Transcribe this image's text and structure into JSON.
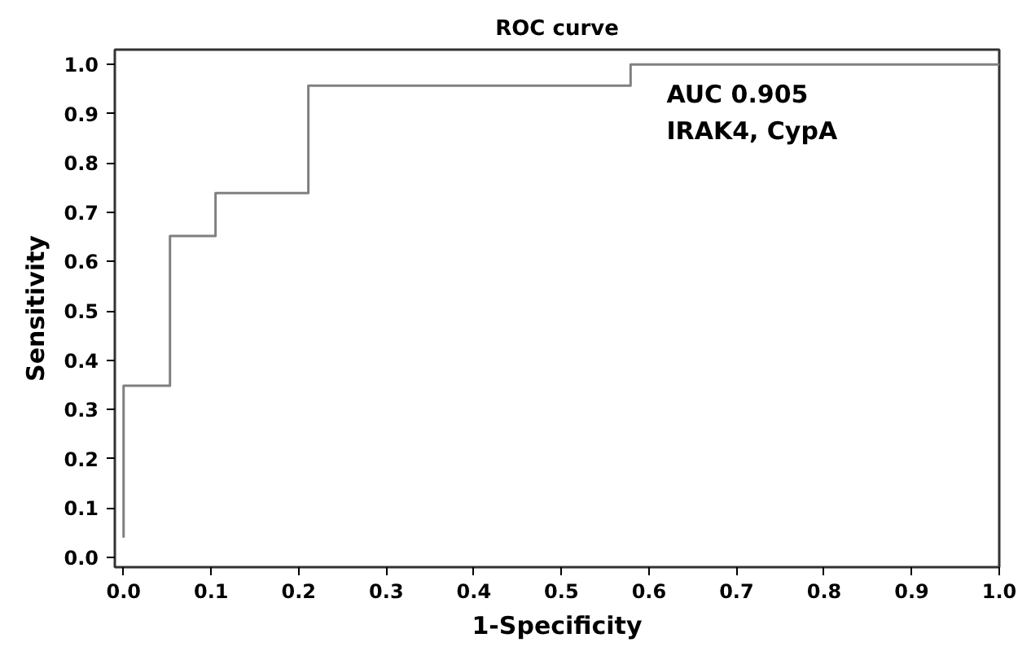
{
  "chart_data": {
    "type": "step",
    "title": "ROC curve",
    "xlabel": "1-Specificity",
    "ylabel": "Sensitivity",
    "x": [
      0,
      0,
      0.053,
      0.105,
      0.211,
      0.579,
      1.0
    ],
    "values": [
      0.04,
      0.348,
      0.652,
      0.739,
      0.957,
      1.0,
      1.0
    ],
    "color": "#808080",
    "xlim": [
      -0.01,
      1.0
    ],
    "ylim": [
      -0.02,
      1.03
    ],
    "xticks": [
      {
        "value": 0,
        "label": "0.0"
      },
      0.1,
      0.2,
      0.3,
      0.4,
      0.5,
      0.6,
      0.7,
      0.8,
      0.9,
      {
        "value": 1,
        "label": "1.0"
      }
    ],
    "yticks": [
      {
        "value": 0,
        "label": "0.0"
      },
      0.1,
      0.2,
      0.3,
      0.4,
      0.5,
      0.6,
      0.7,
      0.8,
      0.9,
      {
        "value": 1,
        "label": "1.0"
      }
    ],
    "annotations": [
      "AUC 0.905",
      "IRAK4, CypA"
    ],
    "grid": false
  }
}
